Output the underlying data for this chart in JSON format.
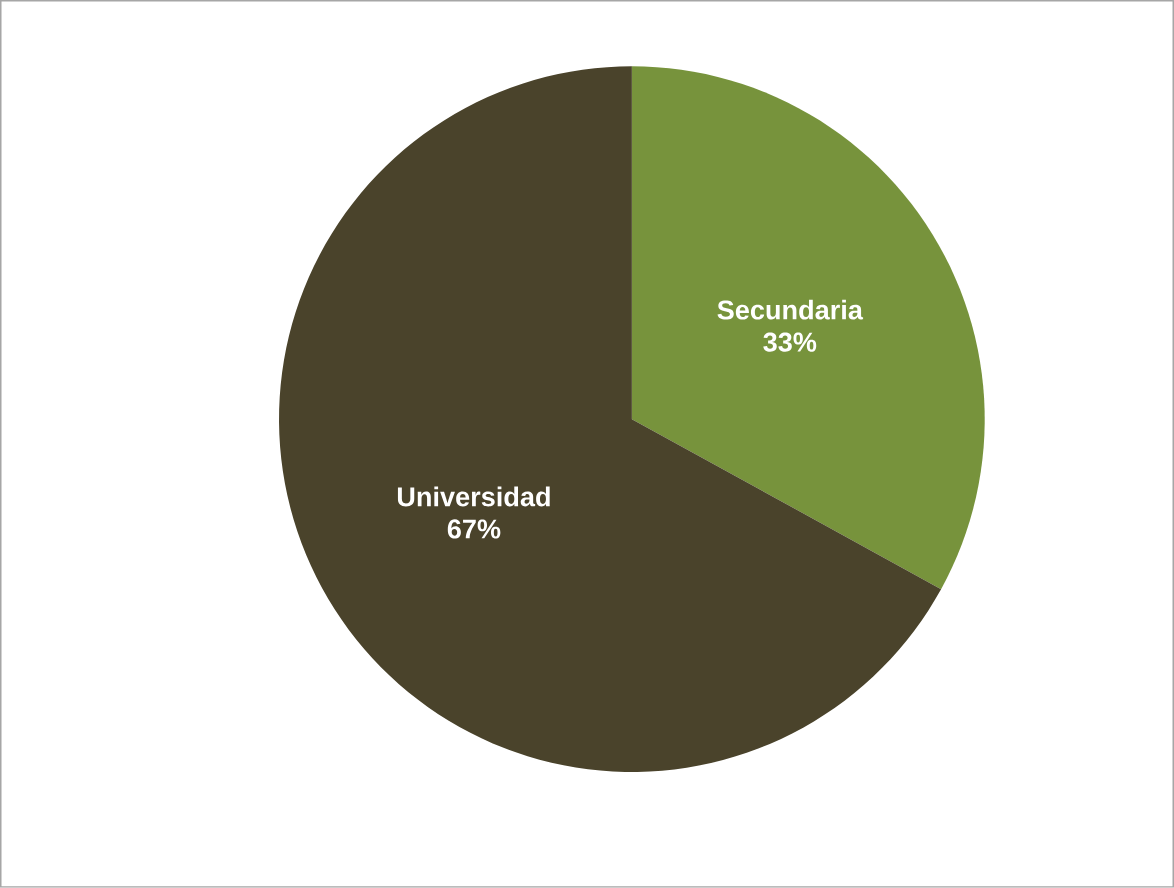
{
  "chart_data": {
    "type": "pie",
    "categories": [
      "Secundaria",
      "Universidad"
    ],
    "values": [
      33,
      67
    ],
    "colors": [
      "#77933c",
      "#4a432b"
    ],
    "value_labels": [
      "33%",
      "67%"
    ]
  }
}
